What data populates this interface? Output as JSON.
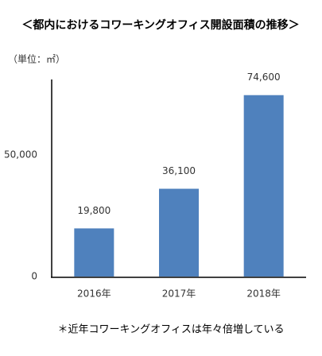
{
  "chart_data": {
    "type": "bar",
    "title": "＜都内におけるコワーキングオフィス開設面積の推移＞",
    "unit_label": "（単位：㎡）",
    "categories": [
      "2016年",
      "2017年",
      "2018年"
    ],
    "values": [
      19800,
      36100,
      74600
    ],
    "value_labels": [
      "19,800",
      "36,100",
      "74,600"
    ],
    "color": "#4f81bd",
    "ylim": [
      0,
      80000
    ],
    "yticks": [
      0,
      {
        "value": 50000,
        "label": "50,000"
      }
    ],
    "grid": false,
    "footnote": "＊近年コワーキングオフィスは年々倍増している"
  }
}
